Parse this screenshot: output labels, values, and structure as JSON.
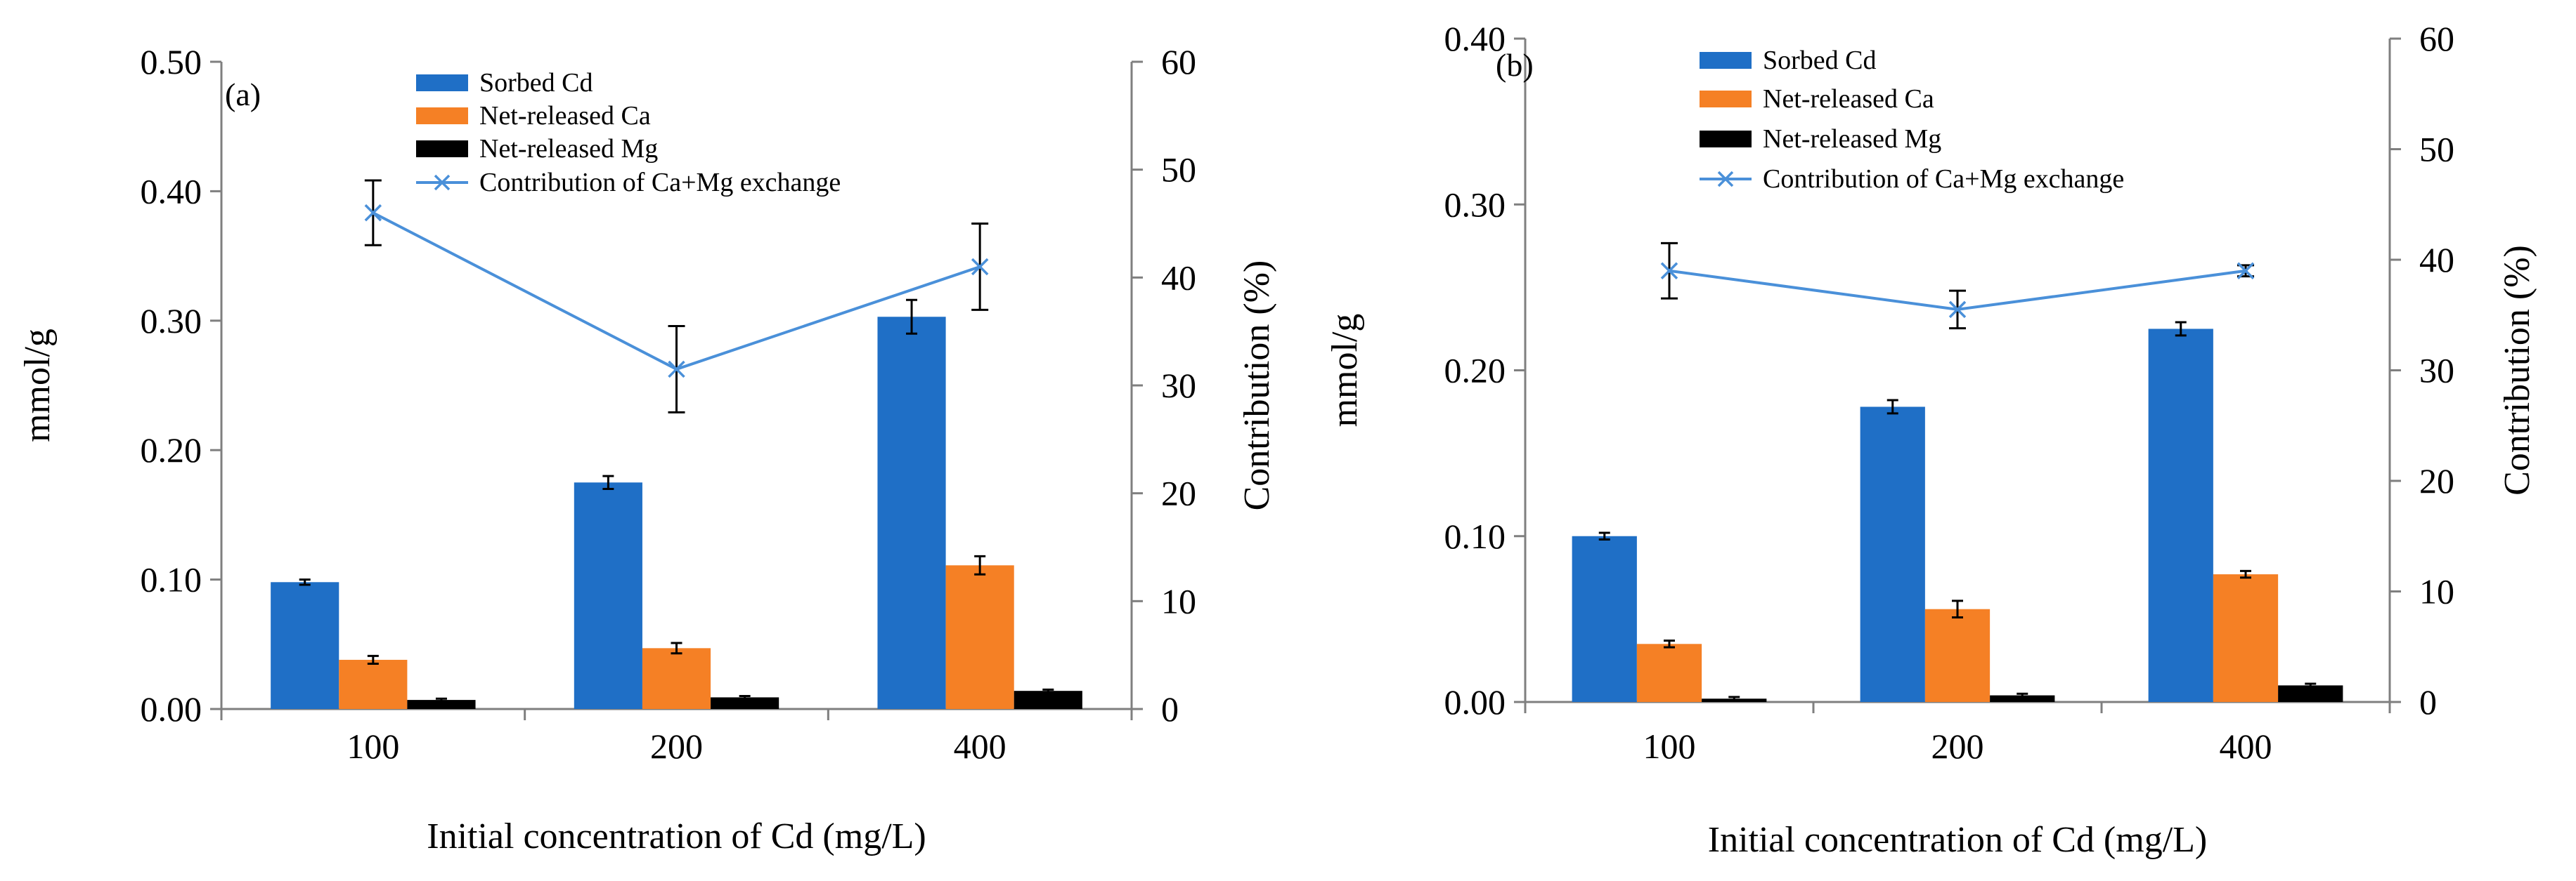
{
  "colors": {
    "sorbed_cd": "#1F6FC6",
    "ca": "#F58025",
    "mg": "#000000",
    "line": "#4A90D9"
  },
  "chart_data": [
    {
      "type": "bar",
      "panel_label": "(a)",
      "title": "",
      "xlabel": "Initial concentration of Cd (mg/L)",
      "ylabel": "mmol/g",
      "y2label": "Contribution (%)",
      "categories": [
        "100",
        "200",
        "400"
      ],
      "ylim": [
        0,
        0.5
      ],
      "yticks": [
        0,
        0.1,
        0.2,
        0.3,
        0.4,
        0.5
      ],
      "ytick_labels": [
        "0.00",
        "0.10",
        "0.20",
        "0.30",
        "0.40",
        "0.50"
      ],
      "y2lim": [
        0,
        60
      ],
      "y2ticks": [
        0,
        10,
        20,
        30,
        40,
        50,
        60
      ],
      "y2tick_labels": [
        "0",
        "10",
        "20",
        "30",
        "40",
        "50",
        "60"
      ],
      "series": [
        {
          "name": "Sorbed Cd",
          "values": [
            0.098,
            0.175,
            0.303
          ],
          "errors": [
            0.002,
            0.005,
            0.013
          ],
          "color": "#1F6FC6"
        },
        {
          "name": "Net-released Ca",
          "values": [
            0.038,
            0.047,
            0.111
          ],
          "errors": [
            0.003,
            0.004,
            0.007
          ],
          "color": "#F58025"
        },
        {
          "name": "Net-released Mg",
          "values": [
            0.007,
            0.009,
            0.014
          ],
          "errors": [
            0.001,
            0.001,
            0.001
          ],
          "color": "#000000"
        }
      ],
      "line_series": {
        "name": "Contribution of Ca+Mg exchange",
        "axis": "y2",
        "values": [
          46.0,
          31.5,
          41.0
        ],
        "errors": [
          3.0,
          4.0,
          4.0
        ],
        "color": "#4A90D9",
        "marker": "x"
      },
      "legend": {
        "placement": "top-center",
        "items": [
          "Sorbed Cd",
          "Net-released Ca",
          "Net-released Mg",
          "Contribution of Ca+Mg exchange"
        ]
      },
      "grid": false
    },
    {
      "type": "bar",
      "panel_label": "(b)",
      "title": "",
      "xlabel": "Initial concentration of Cd (mg/L)",
      "ylabel": "mmol/g",
      "y2label": "Contribution (%)",
      "categories": [
        "100",
        "200",
        "400"
      ],
      "ylim": [
        0,
        0.4
      ],
      "yticks": [
        0,
        0.1,
        0.2,
        0.3,
        0.4
      ],
      "ytick_labels": [
        "0.00",
        "0.10",
        "0.20",
        "0.30",
        "0.40"
      ],
      "y2lim": [
        0,
        60
      ],
      "y2ticks": [
        0,
        10,
        20,
        30,
        40,
        50,
        60
      ],
      "y2tick_labels": [
        "0",
        "10",
        "20",
        "30",
        "40",
        "50",
        "60"
      ],
      "series": [
        {
          "name": "Sorbed Cd",
          "values": [
            0.1,
            0.178,
            0.225
          ],
          "errors": [
            0.002,
            0.004,
            0.004
          ],
          "color": "#1F6FC6"
        },
        {
          "name": "Net-released Ca",
          "values": [
            0.035,
            0.056,
            0.077
          ],
          "errors": [
            0.002,
            0.005,
            0.002
          ],
          "color": "#F58025"
        },
        {
          "name": "Net-released Mg",
          "values": [
            0.002,
            0.004,
            0.01
          ],
          "errors": [
            0.001,
            0.001,
            0.001
          ],
          "color": "#000000"
        }
      ],
      "line_series": {
        "name": "Contribution of Ca+Mg exchange",
        "axis": "y2",
        "values": [
          39.0,
          35.5,
          39.0
        ],
        "errors": [
          2.5,
          1.7,
          0.5
        ],
        "color": "#4A90D9",
        "marker": "x"
      },
      "legend": {
        "placement": "top-center",
        "items": [
          "Sorbed Cd",
          "Net-released Ca",
          "Net-released Mg",
          "Contribution of Ca+Mg exchange"
        ]
      },
      "grid": false
    }
  ]
}
